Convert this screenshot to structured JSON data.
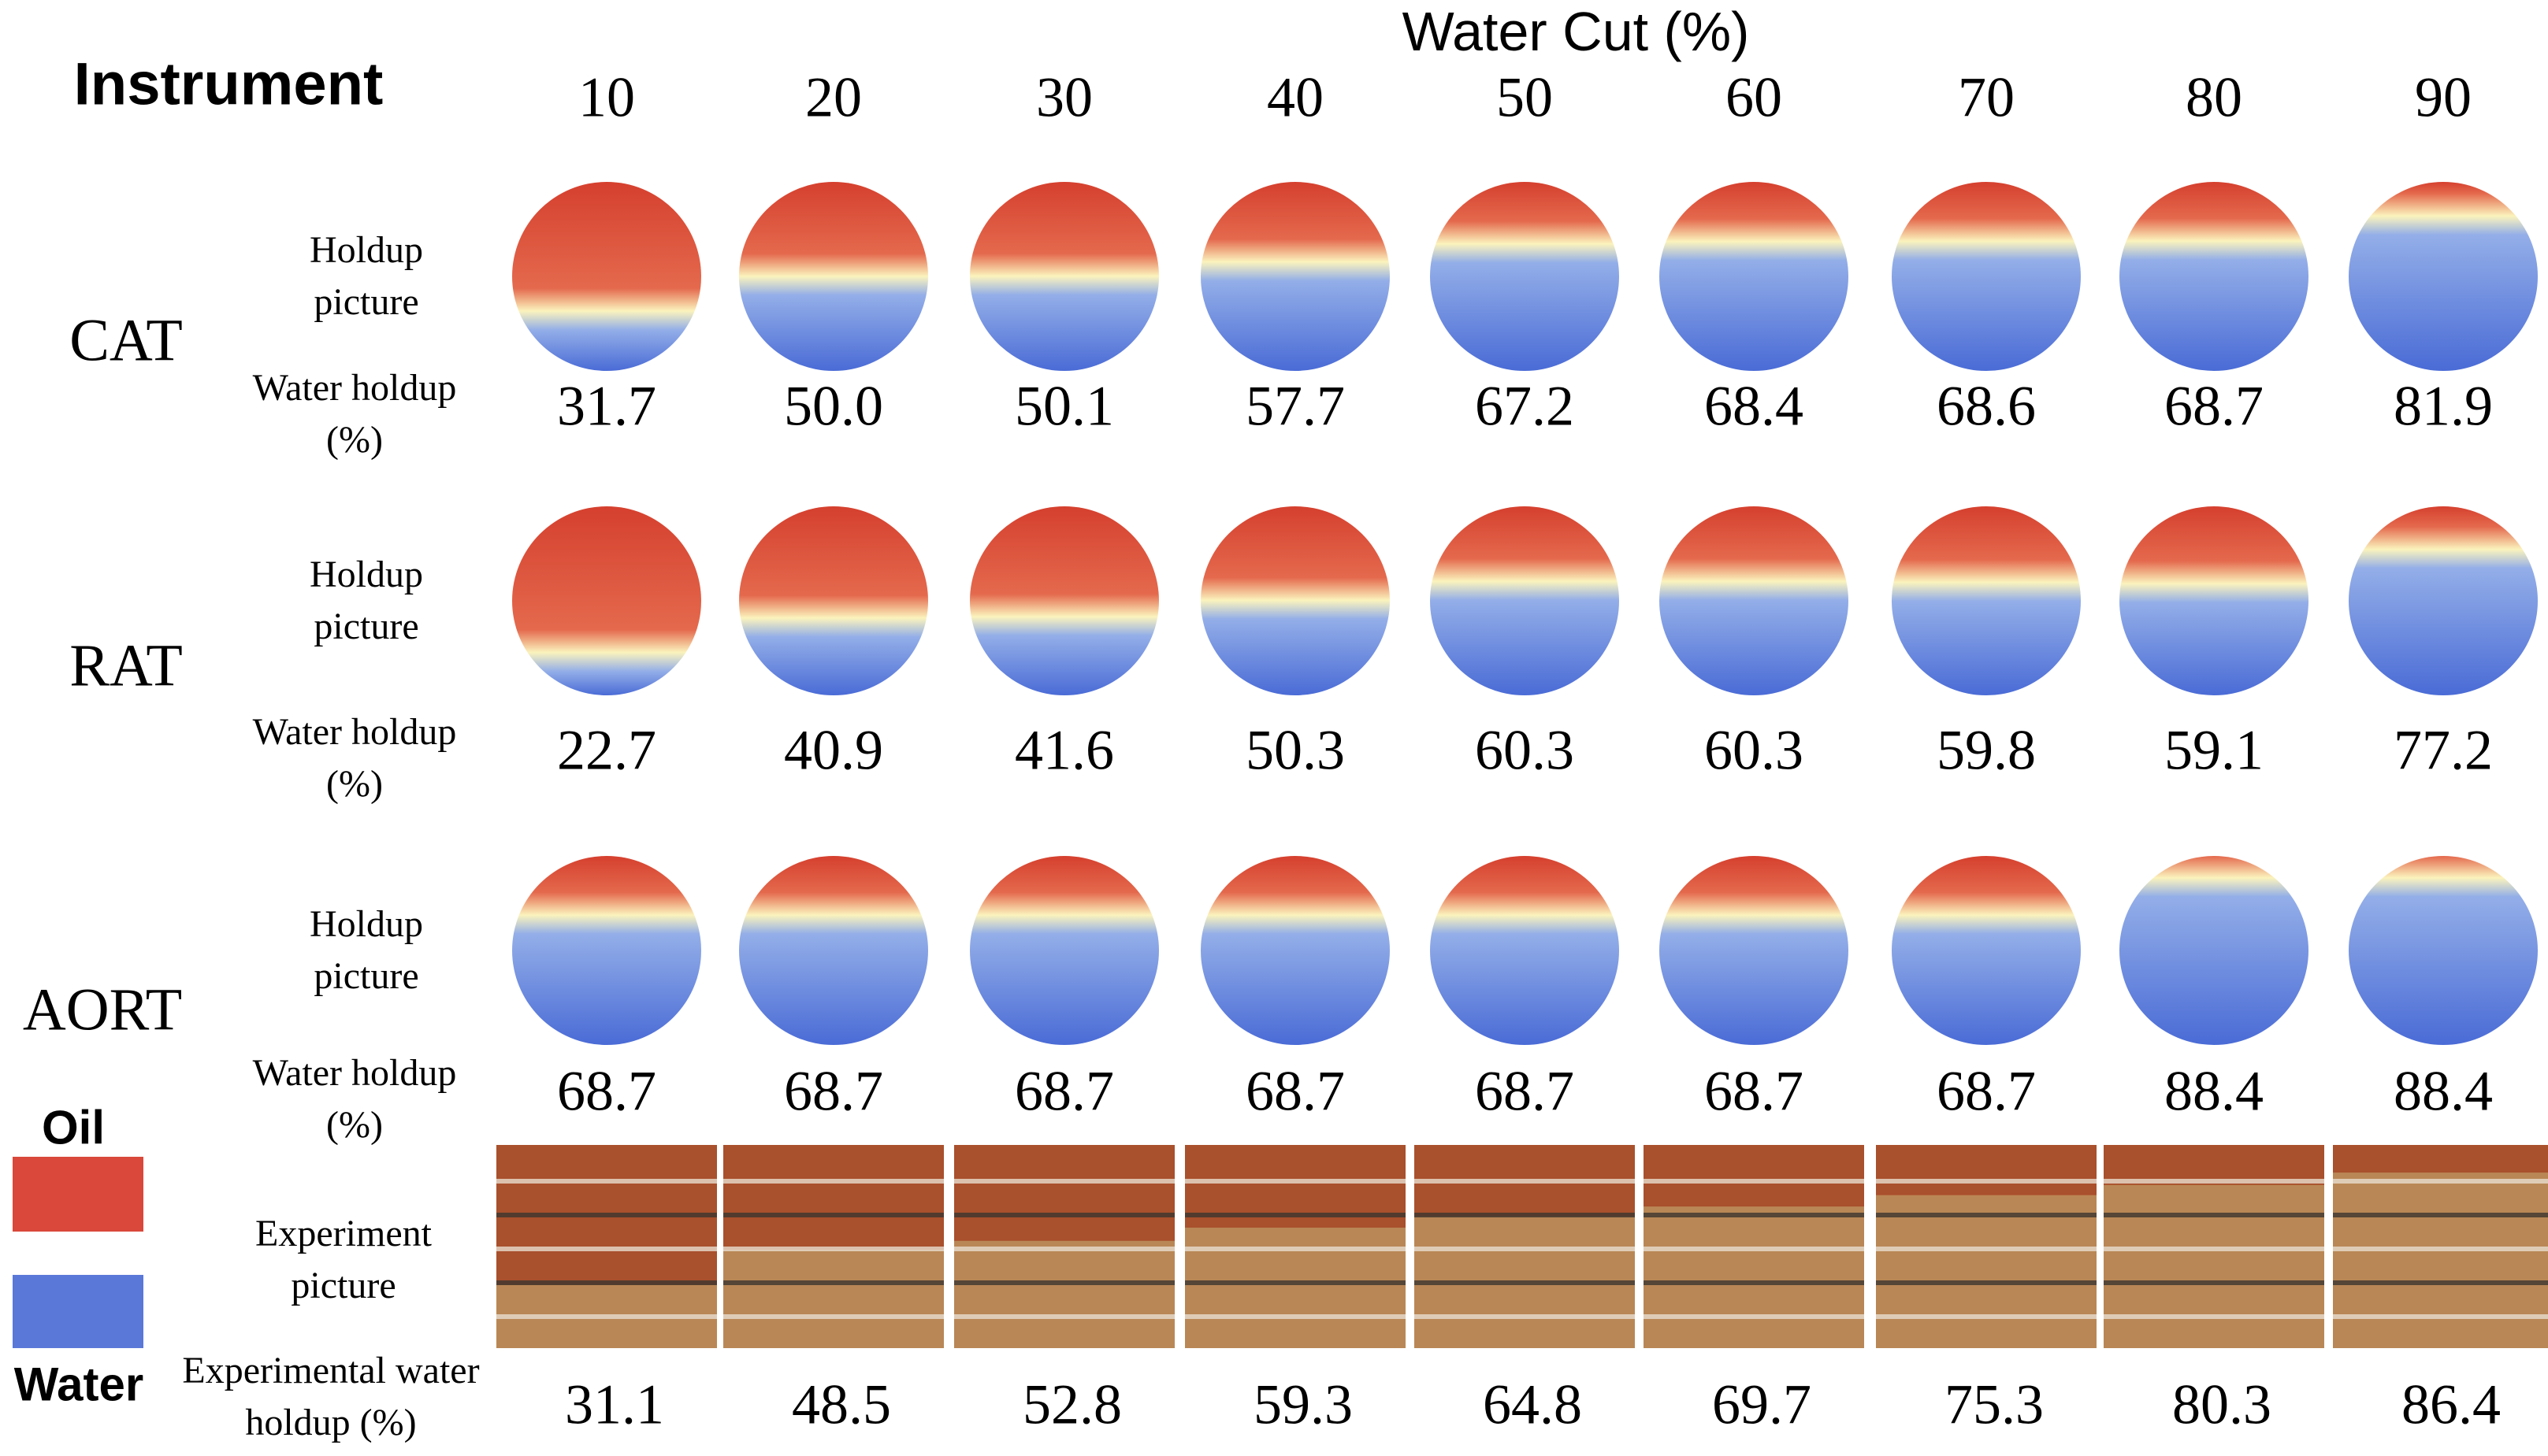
{
  "header": {
    "corner": "Instrument",
    "title": "Water Cut (%)",
    "water_cuts": [
      "10",
      "20",
      "30",
      "40",
      "50",
      "60",
      "70",
      "80",
      "90"
    ]
  },
  "rows": [
    {
      "name": "CAT",
      "picture_label": "Holdup picture",
      "value_label": "Water holdup (%)",
      "values": [
        "31.7",
        "50.0",
        "50.1",
        "57.7",
        "67.2",
        "68.4",
        "68.6",
        "68.7",
        "81.9"
      ]
    },
    {
      "name": "RAT",
      "picture_label": "Holdup picture",
      "value_label": "Water holdup (%)",
      "values": [
        "22.7",
        "40.9",
        "41.6",
        "50.3",
        "60.3",
        "60.3",
        "59.8",
        "59.1",
        "77.2"
      ]
    },
    {
      "name": "AORT",
      "picture_label": "Holdup picture",
      "value_label": "Water holdup (%)",
      "values": [
        "68.7",
        "68.7",
        "68.7",
        "68.7",
        "68.7",
        "68.7",
        "68.7",
        "88.4",
        "88.4"
      ]
    }
  ],
  "experiment": {
    "picture_label": "Experiment picture",
    "value_label": "Experimental water holdup (%)",
    "values": [
      "31.1",
      "48.5",
      "52.8",
      "59.3",
      "64.8",
      "69.7",
      "75.3",
      "80.3",
      "86.4"
    ]
  },
  "legend": {
    "oil": "Oil",
    "water": "Water"
  }
}
